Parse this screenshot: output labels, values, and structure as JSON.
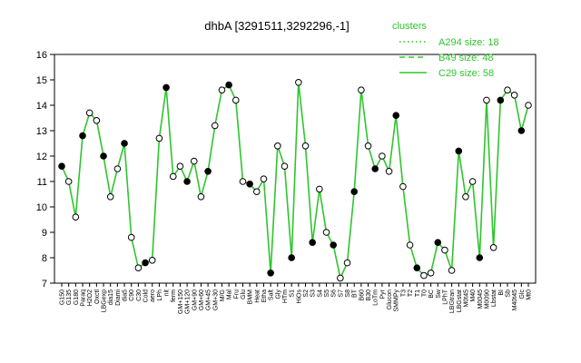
{
  "chart_data": {
    "type": "line",
    "title": "dhbA [3291511,3292296,-1]",
    "xlabel": "",
    "ylabel": "",
    "ylim": [
      7,
      16
    ],
    "yticks": [
      7,
      8,
      9,
      10,
      11,
      12,
      13,
      14,
      15,
      16
    ],
    "grid": false,
    "legend": {
      "title": "clusters",
      "placement": "top-right",
      "entries": [
        {
          "label": "A294 size: 18",
          "style": "dotted"
        },
        {
          "label": "B49 size: 48",
          "style": "dashed"
        },
        {
          "label": "C29 size: 58",
          "style": "solid"
        }
      ]
    },
    "line_color": "#2ec52e",
    "x_tick_labels": [
      "G150",
      "G135",
      "G180",
      "Paraq",
      "H2O2",
      "Oxctl",
      "LBGexp",
      "dia15",
      "Diami",
      "dia5",
      "C90",
      "C30",
      "Cold",
      "aero",
      "LPh",
      "nit",
      "ferm",
      "GM+150",
      "GM+120",
      "GM+90",
      "GM+60",
      "GM+45",
      "GM+30",
      "M/G",
      "Mal",
      "Fru",
      "Glu",
      "BMM",
      "Heat",
      "Etha",
      "Salt",
      "Gly",
      "HTm",
      "S1",
      "HiOs",
      "S2",
      "S3",
      "S4",
      "S5",
      "S6",
      "S7",
      "S8",
      "BT",
      "B60",
      "B30",
      "LoTm",
      "Pyr",
      "Glucon",
      "SMMPy",
      "T3",
      "T2",
      "T1",
      "T0",
      "BC",
      "Sw",
      "LPhT",
      "LBGtran",
      "LBGstat",
      "M0t45",
      "M40",
      "M0045",
      "M0090",
      "Lbstat",
      "BI",
      "Sb",
      "M40t45",
      "Glc",
      "Mt0"
    ],
    "x": [
      1,
      2,
      3,
      4,
      5,
      6,
      7,
      8,
      9,
      10,
      11,
      12,
      13,
      14,
      15,
      16,
      17,
      18,
      19,
      20,
      21,
      22,
      23,
      24,
      25,
      26,
      27,
      28,
      29,
      30,
      31,
      32,
      33,
      34,
      35,
      36,
      37,
      38,
      39,
      40,
      41,
      42,
      43,
      44,
      45,
      46,
      47,
      48,
      49,
      50,
      51,
      52,
      53,
      54,
      55,
      56,
      57,
      58,
      59,
      60,
      61,
      62,
      63,
      64,
      65,
      66,
      67,
      68
    ],
    "values": [
      11.6,
      11.0,
      9.6,
      12.8,
      13.7,
      13.4,
      12.0,
      10.4,
      11.5,
      12.5,
      8.8,
      7.6,
      7.8,
      7.9,
      12.7,
      14.7,
      11.2,
      11.6,
      11.0,
      11.8,
      10.4,
      11.4,
      13.2,
      14.6,
      14.8,
      14.2,
      11.0,
      10.9,
      10.6,
      11.1,
      7.4,
      12.4,
      11.6,
      8.0,
      14.9,
      12.4,
      8.6,
      10.7,
      9.0,
      8.5,
      7.2,
      7.8,
      10.6,
      14.6,
      12.4,
      11.5,
      12.0,
      11.4,
      13.6,
      10.8,
      8.5,
      7.6,
      7.3,
      7.4,
      8.6,
      8.3,
      7.5,
      12.2,
      10.4,
      11.0,
      8.0,
      14.2,
      8.4,
      14.2,
      14.6,
      14.4,
      13.0,
      14.0
    ]
  }
}
